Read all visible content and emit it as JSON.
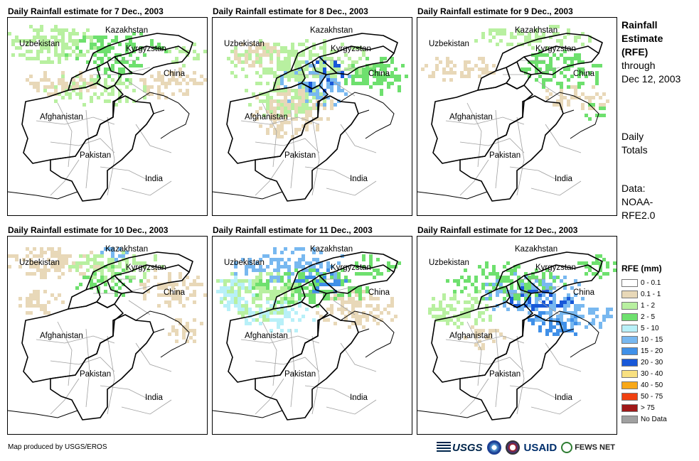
{
  "panels": [
    {
      "title": "Daily Rainfall estimate for 7 Dec., 2003",
      "day": 7
    },
    {
      "title": "Daily Rainfall estimate for 8 Dec., 2003",
      "day": 8
    },
    {
      "title": "Daily Rainfall estimate for 9 Dec., 2003",
      "day": 9
    },
    {
      "title": "Daily Rainfall estimate for 10 Dec., 2003",
      "day": 10
    },
    {
      "title": "Daily Rainfall estimate for 11 Dec., 2003",
      "day": 11
    },
    {
      "title": "Daily Rainfall estimate for 12 Dec., 2003",
      "day": 12
    }
  ],
  "map_labels": {
    "kazakhstan": "Kazakhstan",
    "uzbekistan": "Uzbekistan",
    "kyrgyzstan": "Kyrgyzstan",
    "china": "China",
    "afghanistan": "Afghanistan",
    "pakistan": "Pakistan",
    "india": "India"
  },
  "side": {
    "title_line1": "Rainfall",
    "title_line2": "Estimate",
    "title_line3": "(RFE)",
    "through": "through",
    "date": "Dec 12, 2003",
    "daily1": "Daily",
    "daily2": "Totals",
    "data1": "Data:",
    "data2": "NOAA-",
    "data3": "RFE2.0"
  },
  "legend": {
    "title": "RFE (mm)",
    "items": [
      {
        "label": "0 - 0.1",
        "color": "#ffffff"
      },
      {
        "label": "0.1 - 1",
        "color": "#e8d8b8"
      },
      {
        "label": "1 - 2",
        "color": "#b8f0a0"
      },
      {
        "label": "2 - 5",
        "color": "#6ee06e"
      },
      {
        "label": "5 - 10",
        "color": "#b8f0f8"
      },
      {
        "label": "10 - 15",
        "color": "#78b8f0"
      },
      {
        "label": "15 - 20",
        "color": "#4090e8"
      },
      {
        "label": "20 - 30",
        "color": "#1858d8"
      },
      {
        "label": "30 - 40",
        "color": "#f8e080"
      },
      {
        "label": "40 - 50",
        "color": "#f8a818"
      },
      {
        "label": "50 - 75",
        "color": "#f04010"
      },
      {
        "label": "> 75",
        "color": "#a01818"
      },
      {
        "label": "No Data",
        "color": "#a0a0a0"
      }
    ]
  },
  "credit": "Map produced by USGS/EROS",
  "logos": {
    "usgs": "USGS",
    "usaid": "USAID",
    "fews": "FEWS NET"
  }
}
